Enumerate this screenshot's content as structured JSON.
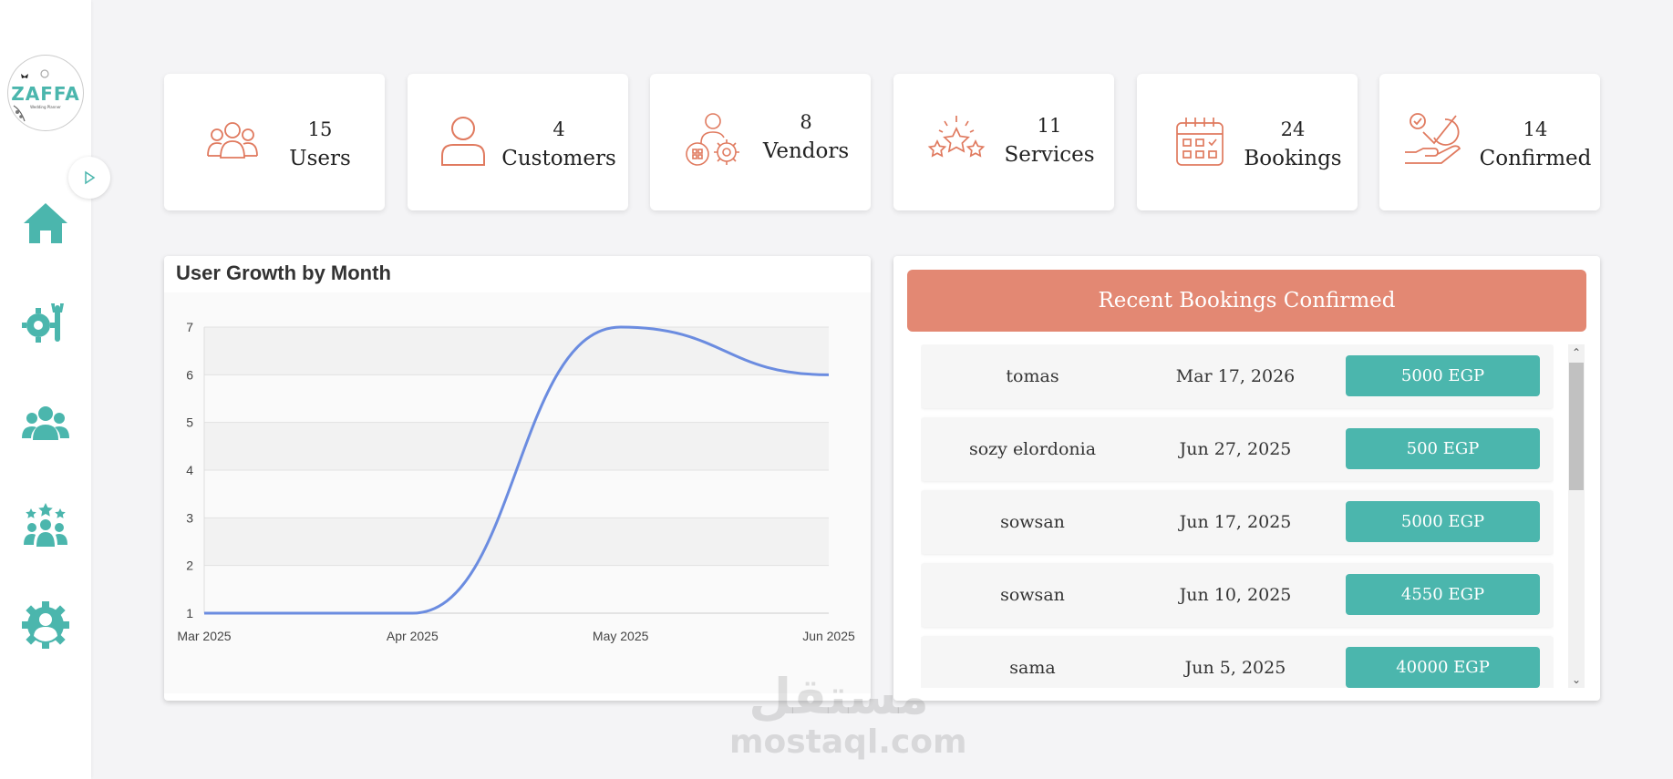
{
  "brand": {
    "logo_text": "ZAFFA",
    "logo_subtitle": "Wedding Planner"
  },
  "colors": {
    "teal": "#4bb6ad",
    "coral": "#e38873",
    "line": "#6b8ce0"
  },
  "sidebar": {
    "items": [
      {
        "icon": "home-icon"
      },
      {
        "icon": "tools-icon"
      },
      {
        "icon": "users-icon"
      },
      {
        "icon": "team-stars-icon"
      },
      {
        "icon": "user-gear-icon"
      }
    ]
  },
  "stats": [
    {
      "value": "15",
      "label": "Users",
      "icon": "users-outline-icon"
    },
    {
      "value": "4",
      "label": "Customers",
      "icon": "person-outline-icon"
    },
    {
      "value": "8",
      "label": "Vendors",
      "icon": "vendor-gear-icon"
    },
    {
      "value": "11",
      "label": "Services",
      "icon": "stars-icon"
    },
    {
      "value": "24",
      "label": "Bookings",
      "icon": "calendar-icon"
    },
    {
      "value": "14",
      "label": "Confirmed",
      "icon": "hand-check-icon"
    }
  ],
  "chart_data": {
    "type": "line",
    "title": "User Growth by Month",
    "x": [
      "Mar 2025",
      "Apr 2025",
      "May 2025",
      "Jun 2025"
    ],
    "y_ticks": [
      "1",
      "2",
      "3",
      "4",
      "5",
      "6",
      "7"
    ],
    "ylim": [
      1,
      7
    ],
    "series": [
      {
        "values": [
          1,
          1,
          7,
          6
        ]
      }
    ],
    "grid": true
  },
  "bookings": {
    "title": "Recent Bookings Confirmed",
    "rows": [
      {
        "name": "tomas",
        "date": "Mar 17, 2026",
        "amount": "5000 EGP"
      },
      {
        "name": "sozy elordonia",
        "date": "Jun 27, 2025",
        "amount": "500 EGP"
      },
      {
        "name": "sowsan",
        "date": "Jun 17, 2025",
        "amount": "5000 EGP"
      },
      {
        "name": "sowsan",
        "date": "Jun 10, 2025",
        "amount": "4550 EGP"
      },
      {
        "name": "sama",
        "date": "Jun 5, 2025",
        "amount": "40000 EGP"
      }
    ]
  },
  "watermark": {
    "arabic": "مستقل",
    "latin": "mostaql.com"
  }
}
